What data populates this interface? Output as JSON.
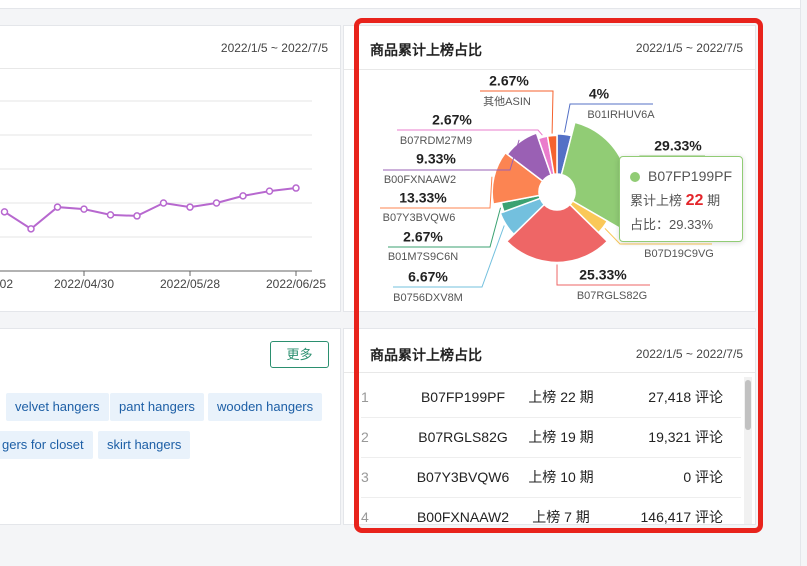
{
  "left_card": {
    "date_range": "2022/1/5 ~ 2022/7/5"
  },
  "chart_data": [
    {
      "type": "line",
      "categories": [
        "02",
        null,
        null,
        null,
        "2022/04/30",
        null,
        null,
        null,
        "2022/05/28",
        null,
        null,
        null,
        "2022/06/25"
      ],
      "values": [
        null,
        1.74,
        1.24,
        1.88,
        1.82,
        1.65,
        1.62,
        2.0,
        1.88,
        2.0,
        2.21,
        2.35,
        2.44
      ],
      "color": "#b768cf",
      "ylim": [
        0,
        5
      ]
    },
    {
      "type": "pie",
      "title": "商品累计上榜占比",
      "date_range": "2022/1/5 ~ 2022/7/5",
      "categories": [
        "B01IRHUV6A",
        "B07FP199PF",
        "B07D19C9VG",
        "B07RGLS82G",
        "B0756DXV8M",
        "B01M7S9C6N",
        "B07Y3BVQW6",
        "B00FXNAAW2",
        "B07RDM27M9",
        "其他ASIN"
      ],
      "values": [
        4,
        29.33,
        4,
        25.33,
        6.67,
        2.67,
        13.33,
        9.33,
        2.67,
        2.67
      ],
      "value_labels": [
        "4%",
        "29.33%",
        null,
        "25.33%",
        "6.67%",
        "2.67%",
        "13.33%",
        "9.33%",
        "2.67%",
        "2.67%"
      ],
      "colors": [
        "#5470c6",
        "#91cc75",
        "#fac858",
        "#ee6666",
        "#73c0de",
        "#3ba272",
        "#fc8452",
        "#9a60b4",
        "#ea7ccc",
        "#f5622e"
      ],
      "tooltip": {
        "name": "B07FP199PF",
        "count_prefix": "累计上榜",
        "count": 22,
        "count_unit": "期",
        "share": "占比：29.33%"
      }
    }
  ],
  "keywords": {
    "more_button": "更多",
    "tags": [
      "velvet hangers",
      "pant hangers",
      "wooden hangers",
      "gers for closet",
      "skirt hangers"
    ]
  },
  "ranking_table": {
    "title": "商品累计上榜占比",
    "date_range": "2022/1/5 ~ 2022/7/5",
    "rows": [
      [
        "1",
        "B07FP199PF",
        "上榜 22 期",
        "27,418 评论"
      ],
      [
        "2",
        "B07RGLS82G",
        "上榜 19 期",
        "19,321 评论"
      ],
      [
        "3",
        "B07Y3BVQW6",
        "上榜 10 期",
        "0 评论"
      ],
      [
        "4",
        "B00FXNAAW2",
        "上榜 7 期",
        "146,417 评论"
      ]
    ]
  }
}
